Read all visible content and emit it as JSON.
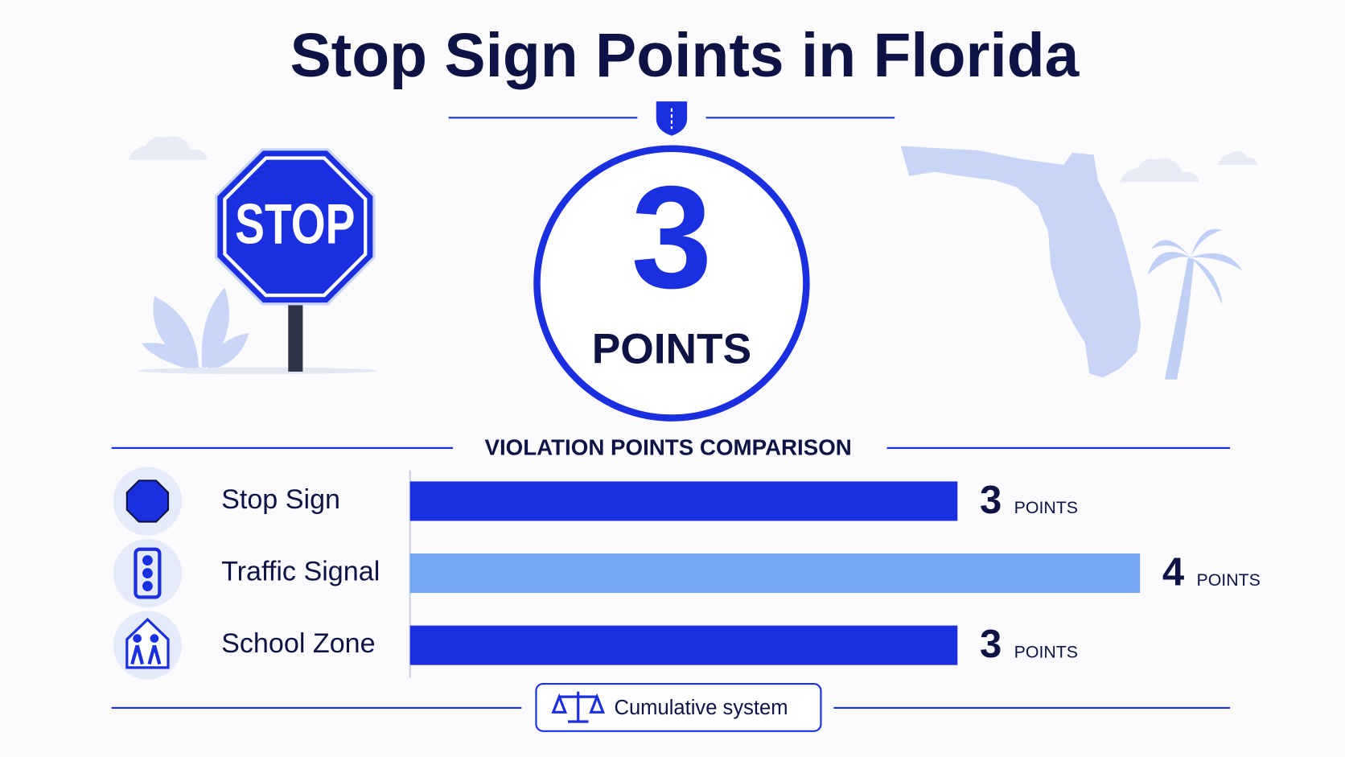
{
  "title": "Stop Sign Points in Florida",
  "hero": {
    "sign_text": "STOP",
    "value": 3,
    "unit": "POINTS"
  },
  "chart_data": {
    "type": "bar",
    "orientation": "horizontal",
    "title": "VIOLATION POINTS COMPARISON",
    "categories": [
      "Stop Sign",
      "Traffic Signal",
      "School Zone"
    ],
    "values": [
      3,
      4,
      3
    ],
    "colors": [
      "#1a2fe0",
      "#74a6f4",
      "#1a2fe0"
    ],
    "unit": "POINTS",
    "xlim": [
      0,
      4
    ]
  },
  "footer": {
    "note": "Cumulative system"
  }
}
